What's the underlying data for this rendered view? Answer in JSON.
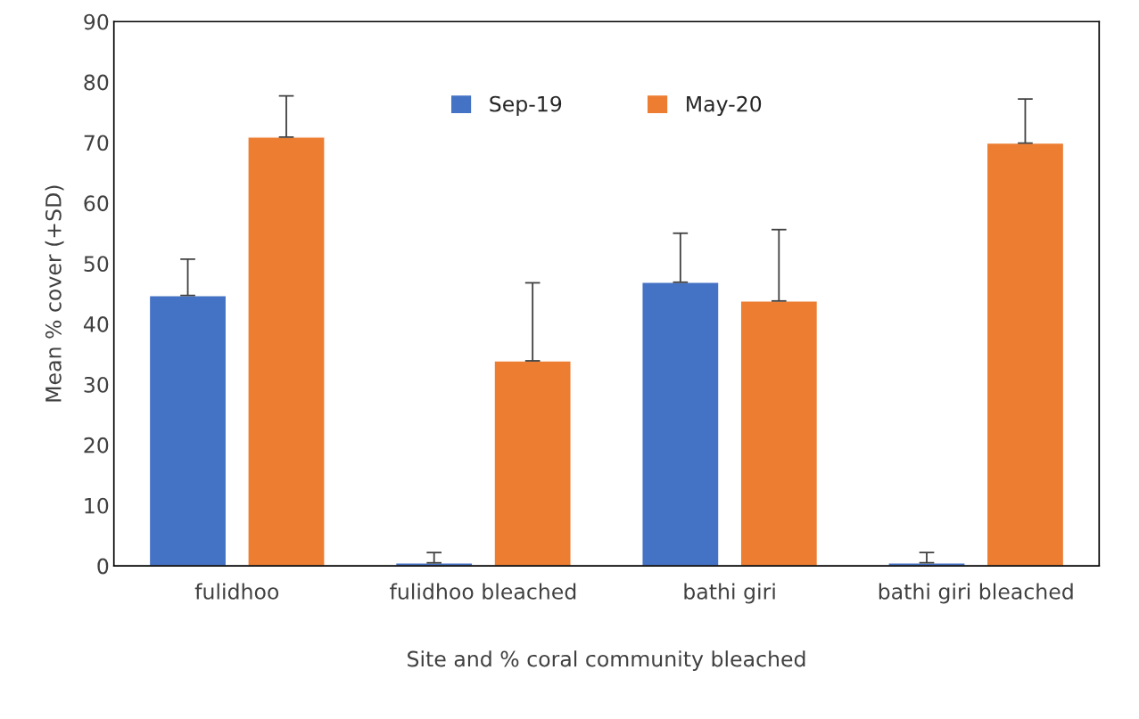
{
  "chart_data": {
    "type": "bar",
    "xlabel": "Site and % coral community bleached",
    "ylabel": "Mean % cover (+SD)",
    "categories": [
      "fulidhoo",
      "fulidhoo bleached",
      "bathi giri",
      "bathi giri bleached"
    ],
    "series": [
      {
        "name": "Sep-19",
        "color": "#4472c4",
        "values": [
          44.7,
          0.5,
          46.9,
          0.5
        ],
        "errors": [
          [
            44.7,
            50.7
          ],
          [
            0.5,
            2.2
          ],
          [
            46.9,
            55.0
          ],
          [
            0.5,
            2.2
          ]
        ]
      },
      {
        "name": "May-20",
        "color": "#ed7d31",
        "values": [
          70.9,
          33.9,
          43.8,
          69.9
        ],
        "errors": [
          [
            70.9,
            77.7
          ],
          [
            33.9,
            46.8
          ],
          [
            43.8,
            55.6
          ],
          [
            69.9,
            77.2
          ]
        ]
      }
    ],
    "ylim": [
      0,
      90
    ],
    "yticks": [
      0,
      10,
      20,
      30,
      40,
      50,
      60,
      70,
      80,
      90
    ],
    "grid": false,
    "legend": "top"
  }
}
